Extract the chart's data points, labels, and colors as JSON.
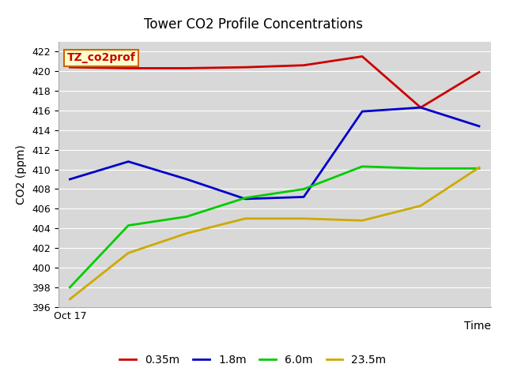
{
  "title": "Tower CO2 Profile Concentrations",
  "xlabel": "Time",
  "ylabel": "CO2 (ppm)",
  "ylim": [
    396,
    423
  ],
  "yticks": [
    396,
    398,
    400,
    402,
    404,
    406,
    408,
    410,
    412,
    414,
    416,
    418,
    420,
    422
  ],
  "x_values": [
    0,
    1,
    2,
    3,
    4,
    5,
    6,
    7
  ],
  "series": [
    {
      "label": "0.35m",
      "color": "#cc0000",
      "y": [
        420.4,
        420.3,
        420.3,
        420.4,
        420.6,
        421.5,
        416.3,
        419.9
      ]
    },
    {
      "label": "1.8m",
      "color": "#0000cc",
      "y": [
        409.0,
        410.8,
        409.0,
        407.0,
        407.2,
        415.9,
        416.3,
        414.4
      ]
    },
    {
      "label": "6.0m",
      "color": "#00cc00",
      "y": [
        398.0,
        404.3,
        405.2,
        407.1,
        408.0,
        410.3,
        410.1,
        410.1
      ]
    },
    {
      "label": "23.5m",
      "color": "#ccaa00",
      "y": [
        396.8,
        401.5,
        403.5,
        405.0,
        405.0,
        404.8,
        406.3,
        410.2
      ]
    }
  ],
  "annotation_text": "TZ_co2prof",
  "annotation_color": "#cc0000",
  "annotation_bg": "#ffffcc",
  "annotation_border": "#cc6600",
  "plot_bg_color": "#d8d8d8",
  "fig_bg_color": "#ffffff",
  "legend_dash_colors": [
    "#cc0000",
    "#0000cc",
    "#00cc00",
    "#ccaa00"
  ],
  "legend_labels": [
    "0.35m",
    "1.8m",
    "6.0m",
    "23.5m"
  ],
  "grid_color": "#ffffff",
  "spine_color": "#aaaaaa",
  "title_fontsize": 12,
  "label_fontsize": 10,
  "annotation_fontsize": 10,
  "legend_fontsize": 10,
  "linewidth": 2.0
}
